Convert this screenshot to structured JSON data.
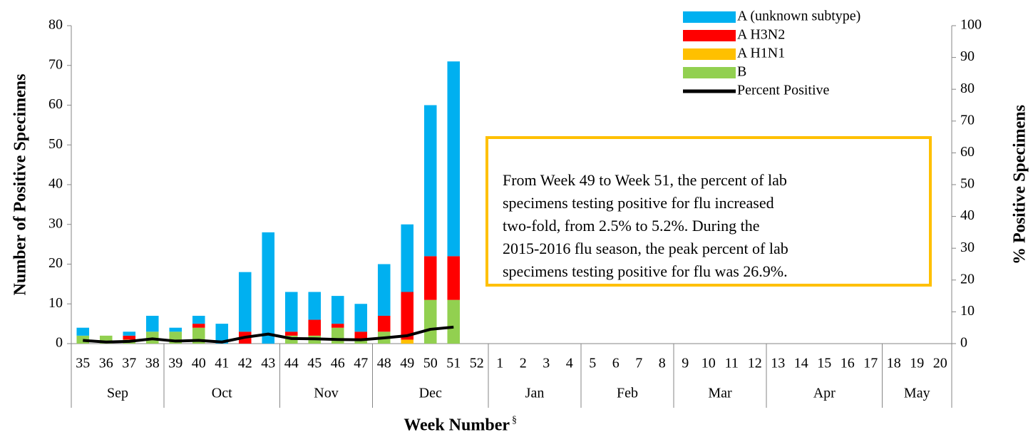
{
  "chart_data": {
    "type": "bar",
    "stacked": true,
    "categories": [
      "35",
      "36",
      "37",
      "38",
      "39",
      "40",
      "41",
      "42",
      "43",
      "44",
      "45",
      "46",
      "47",
      "48",
      "49",
      "50",
      "51",
      "52",
      "1",
      "2",
      "3",
      "4",
      "5",
      "6",
      "7",
      "8",
      "9",
      "10",
      "11",
      "12",
      "13",
      "14",
      "15",
      "16",
      "17",
      "18",
      "19",
      "20"
    ],
    "month_groups": [
      {
        "label": "Sep",
        "weeks": 4
      },
      {
        "label": "Oct",
        "weeks": 5
      },
      {
        "label": "Nov",
        "weeks": 4
      },
      {
        "label": "Dec",
        "weeks": 5
      },
      {
        "label": "Jan",
        "weeks": 4
      },
      {
        "label": "Feb",
        "weeks": 4
      },
      {
        "label": "Mar",
        "weeks": 4
      },
      {
        "label": "Apr",
        "weeks": 5
      },
      {
        "label": "May",
        "weeks": 3
      }
    ],
    "series": [
      {
        "name": "B",
        "color": "#92d050",
        "values": [
          2,
          2,
          1,
          3,
          3,
          4,
          0,
          0,
          0,
          2,
          2,
          4,
          1,
          3,
          0,
          11,
          11,
          null,
          null,
          null,
          null,
          null,
          null,
          null,
          null,
          null,
          null,
          null,
          null,
          null,
          null,
          null,
          null,
          null,
          null,
          null,
          null,
          null
        ]
      },
      {
        "name": "A H1N1",
        "color": "#ffc000",
        "values": [
          0,
          0,
          0,
          0,
          0,
          0,
          0,
          0,
          0,
          0,
          0,
          0,
          0,
          0,
          1,
          0,
          0,
          null,
          null,
          null,
          null,
          null,
          null,
          null,
          null,
          null,
          null,
          null,
          null,
          null,
          null,
          null,
          null,
          null,
          null,
          null,
          null,
          null
        ]
      },
      {
        "name": "A H3N2",
        "color": "#ff0000",
        "values": [
          0,
          0,
          1,
          0,
          0,
          1,
          0,
          3,
          0,
          1,
          4,
          1,
          2,
          4,
          12,
          11,
          11,
          null,
          null,
          null,
          null,
          null,
          null,
          null,
          null,
          null,
          null,
          null,
          null,
          null,
          null,
          null,
          null,
          null,
          null,
          null,
          null,
          null
        ]
      },
      {
        "name": "A (unknown subtype)",
        "color": "#00b0f0",
        "values": [
          2,
          0,
          1,
          4,
          1,
          2,
          5,
          15,
          28,
          10,
          7,
          7,
          7,
          13,
          17,
          38,
          49,
          null,
          null,
          null,
          null,
          null,
          null,
          null,
          null,
          null,
          null,
          null,
          null,
          null,
          null,
          null,
          null,
          null,
          null,
          null,
          null,
          null
        ]
      },
      {
        "name": "Percent Positive",
        "type": "line",
        "axis": "y2",
        "color": "#000000",
        "values": [
          1,
          0.5,
          0.7,
          1.5,
          0.8,
          1,
          0.5,
          2,
          3,
          1.6,
          1.5,
          1.3,
          1.2,
          1.8,
          2.5,
          4.5,
          5.2,
          null,
          null,
          null,
          null,
          null,
          null,
          null,
          null,
          null,
          null,
          null,
          null,
          null,
          null,
          null,
          null,
          null,
          null,
          null,
          null,
          null
        ]
      }
    ],
    "ylabel": "Number of Positive Specimens",
    "y2label": "% Positive Specimens",
    "xlabel": "Week Number",
    "xlabel_mark": "§",
    "ylim": [
      0,
      80
    ],
    "yticks": [
      0,
      10,
      20,
      30,
      40,
      50,
      60,
      70,
      80
    ],
    "y2lim": [
      0,
      100
    ],
    "y2ticks": [
      0,
      10,
      20,
      30,
      40,
      50,
      60,
      70,
      80,
      90,
      100
    ],
    "legend": "top-right",
    "annotation": [
      "From Week 49 to Week 51, the percent of lab",
      "specimens testing positive for flu increased",
      "two-fold, from 2.5% to 5.2%. During the",
      "2015-2016 flu season, the peak percent of lab",
      "specimens testing positive for flu was 26.9%."
    ]
  }
}
